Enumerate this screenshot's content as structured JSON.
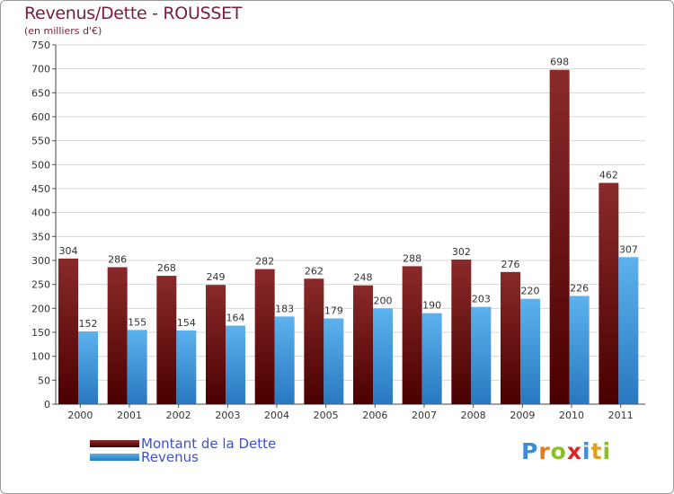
{
  "chart_data": {
    "type": "bar",
    "title": "Revenus/Dette - ROUSSET",
    "subtitle": "(en milliers d'€)",
    "categories": [
      "2000",
      "2001",
      "2002",
      "2003",
      "2004",
      "2005",
      "2006",
      "2007",
      "2008",
      "2009",
      "2010",
      "2011"
    ],
    "series": [
      {
        "name": "Montant de la Dette",
        "color": "#7a1212",
        "values": [
          304,
          286,
          268,
          249,
          282,
          262,
          248,
          288,
          302,
          276,
          698,
          462
        ]
      },
      {
        "name": "Revenus",
        "color": "#3b9ae1",
        "values": [
          152,
          155,
          154,
          164,
          183,
          179,
          200,
          190,
          203,
          220,
          226,
          307
        ]
      }
    ],
    "yticks": [
      "0",
      "50",
      "100",
      "150",
      "200",
      "250",
      "300",
      "350",
      "400",
      "450",
      "500",
      "550",
      "600",
      "650",
      "700",
      "750"
    ],
    "ylim": [
      0,
      750
    ],
    "grid": true,
    "legend_position": "bottom-left"
  },
  "brand": {
    "letters": [
      "P",
      "r",
      "o",
      "x",
      "i",
      "t",
      "i"
    ],
    "colors": [
      "#3d8ed6",
      "#e07b1f",
      "#8bbf2a",
      "#d8262b",
      "#3d8ed6",
      "#e0a01f",
      "#8bbf2a"
    ]
  }
}
